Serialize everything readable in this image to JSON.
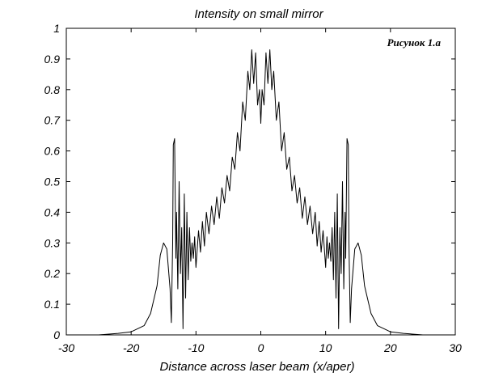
{
  "chart_data": {
    "type": "line",
    "title": "Intensity on small mirror",
    "xlabel": "Distance across laser beam (x/aper)",
    "ylabel": "",
    "annotation": "Рисунок 1.а",
    "xlim": [
      -30,
      30
    ],
    "ylim": [
      0,
      1
    ],
    "x_ticks": [
      -30,
      -20,
      -10,
      0,
      10,
      20,
      30
    ],
    "y_ticks": [
      0,
      0.1,
      0.2,
      0.3,
      0.4,
      0.5,
      0.6,
      0.7,
      0.8,
      0.9,
      1
    ],
    "x_tick_labels": [
      "-30",
      "-20",
      "-10",
      "0",
      "10",
      "20",
      "30"
    ],
    "y_tick_labels": [
      "0",
      "0.1",
      "0.2",
      "0.3",
      "0.4",
      "0.5",
      "0.6",
      "0.7",
      "0.8",
      "0.9",
      "1"
    ],
    "grid": false,
    "line_color": "#000000",
    "series": [
      {
        "x": [
          -25,
          -22,
          -20,
          -18,
          -17,
          -16,
          -15.5,
          -15,
          -14.5,
          -14,
          -13.8,
          -13.6,
          -13.5,
          -13.3,
          -13.1,
          -13,
          -12.8,
          -12.6,
          -12.4,
          -12.2,
          -12,
          -11.8,
          -11.6,
          -11.4,
          -11.2,
          -11,
          -10.8,
          -10.6,
          -10.4,
          -10.2,
          -10,
          -9.6,
          -9.3,
          -9,
          -8.7,
          -8.4,
          -8,
          -7.6,
          -7.2,
          -6.8,
          -6.4,
          -6,
          -5.6,
          -5.2,
          -4.8,
          -4.4,
          -4,
          -3.6,
          -3.2,
          -2.8,
          -2.4,
          -2,
          -1.7,
          -1.4,
          -1.1,
          -0.8,
          -0.5,
          -0.2,
          0,
          0.2,
          0.5,
          0.8,
          1.1,
          1.4,
          1.7,
          2,
          2.4,
          2.8,
          3.2,
          3.6,
          4,
          4.4,
          4.8,
          5.2,
          5.6,
          6,
          6.4,
          6.8,
          7.2,
          7.6,
          8,
          8.4,
          8.7,
          9,
          9.3,
          9.6,
          10,
          10.2,
          10.4,
          10.6,
          10.8,
          11,
          11.2,
          11.4,
          11.6,
          11.8,
          12,
          12.2,
          12.4,
          12.6,
          12.8,
          13,
          13.1,
          13.3,
          13.5,
          13.6,
          13.8,
          14,
          14.5,
          15,
          15.5,
          16,
          17,
          18,
          20,
          22,
          25
        ],
        "y": [
          0.0,
          0.005,
          0.01,
          0.03,
          0.07,
          0.16,
          0.26,
          0.3,
          0.28,
          0.15,
          0.04,
          0.3,
          0.62,
          0.64,
          0.25,
          0.4,
          0.15,
          0.5,
          0.2,
          0.35,
          0.02,
          0.46,
          0.12,
          0.4,
          0.18,
          0.35,
          0.24,
          0.3,
          0.25,
          0.32,
          0.22,
          0.34,
          0.27,
          0.37,
          0.29,
          0.4,
          0.33,
          0.42,
          0.36,
          0.45,
          0.38,
          0.48,
          0.43,
          0.52,
          0.47,
          0.58,
          0.54,
          0.66,
          0.6,
          0.76,
          0.7,
          0.86,
          0.8,
          0.93,
          0.82,
          0.92,
          0.75,
          0.8,
          0.69,
          0.8,
          0.75,
          0.92,
          0.82,
          0.93,
          0.8,
          0.86,
          0.7,
          0.76,
          0.6,
          0.66,
          0.54,
          0.58,
          0.47,
          0.52,
          0.43,
          0.48,
          0.38,
          0.45,
          0.36,
          0.42,
          0.33,
          0.4,
          0.29,
          0.37,
          0.27,
          0.34,
          0.22,
          0.32,
          0.25,
          0.3,
          0.24,
          0.35,
          0.18,
          0.4,
          0.12,
          0.46,
          0.02,
          0.35,
          0.2,
          0.5,
          0.15,
          0.4,
          0.25,
          0.64,
          0.62,
          0.3,
          0.04,
          0.15,
          0.28,
          0.3,
          0.26,
          0.16,
          0.07,
          0.03,
          0.01,
          0.005,
          0.0
        ]
      }
    ]
  }
}
